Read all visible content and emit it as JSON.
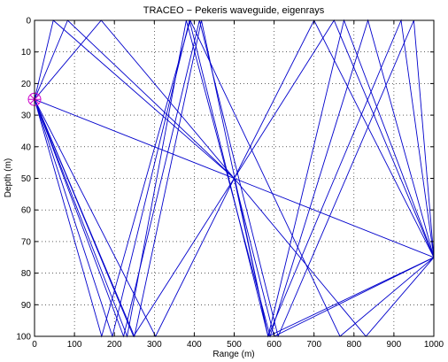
{
  "chart_data": {
    "type": "line",
    "title": "TRACEO − Pekeris waveguide, eigenrays",
    "xlabel": "Range (m)",
    "ylabel": "Depth (m)",
    "xlim": [
      0,
      1000
    ],
    "ylim": [
      0,
      100
    ],
    "y_inverted": true,
    "grid": "dotted",
    "x_ticks": [
      "0",
      "100",
      "200",
      "300",
      "400",
      "500",
      "600",
      "700",
      "800",
      "900",
      "1000"
    ],
    "y_ticks": [
      "0",
      "10",
      "20",
      "30",
      "40",
      "50",
      "60",
      "70",
      "80",
      "90",
      "100"
    ],
    "ray_color": "#0000cc",
    "source_color": "#cc00cc",
    "source": {
      "x": 0,
      "y": 25
    },
    "receiver": {
      "x": 1000,
      "y": 75
    },
    "series": [
      {
        "x": [
          0,
          500,
          1000
        ],
        "y": [
          25,
          50,
          75
        ]
      },
      {
        "x": [
          0,
          47,
          500,
          585,
          1000
        ],
        "y": [
          25,
          0,
          50,
          100,
          75
        ]
      },
      {
        "x": [
          0,
          83,
          500,
          700,
          1000
        ],
        "y": [
          25,
          0,
          50,
          0,
          75
        ]
      },
      {
        "x": [
          0,
          167,
          500,
          600,
          1000
        ],
        "y": [
          25,
          0,
          50,
          100,
          75
        ]
      },
      {
        "x": [
          0,
          248,
          500,
          750,
          1000
        ],
        "y": [
          25,
          100,
          50,
          0,
          75
        ]
      },
      {
        "x": [
          0,
          303,
          500,
          830,
          1000
        ],
        "y": [
          25,
          100,
          50,
          100,
          75
        ]
      },
      {
        "x": [
          0,
          168,
          390,
          765,
          1000
        ],
        "y": [
          25,
          100,
          0,
          100,
          75
        ]
      },
      {
        "x": [
          0,
          223,
          413,
          610,
          950,
          1000
        ],
        "y": [
          25,
          100,
          0,
          100,
          0,
          75
        ]
      },
      {
        "x": [
          0,
          250,
          418,
          585,
          918,
          1000
        ],
        "y": [
          25,
          100,
          0,
          100,
          0,
          75
        ]
      },
      {
        "x": [
          0,
          195,
          388,
          585,
          775,
          1000
        ],
        "y": [
          25,
          100,
          0,
          100,
          0,
          75
        ]
      },
      {
        "x": [
          0,
          232,
          380,
          590,
          835,
          1000
        ],
        "y": [
          25,
          100,
          0,
          100,
          0,
          75
        ]
      }
    ]
  }
}
